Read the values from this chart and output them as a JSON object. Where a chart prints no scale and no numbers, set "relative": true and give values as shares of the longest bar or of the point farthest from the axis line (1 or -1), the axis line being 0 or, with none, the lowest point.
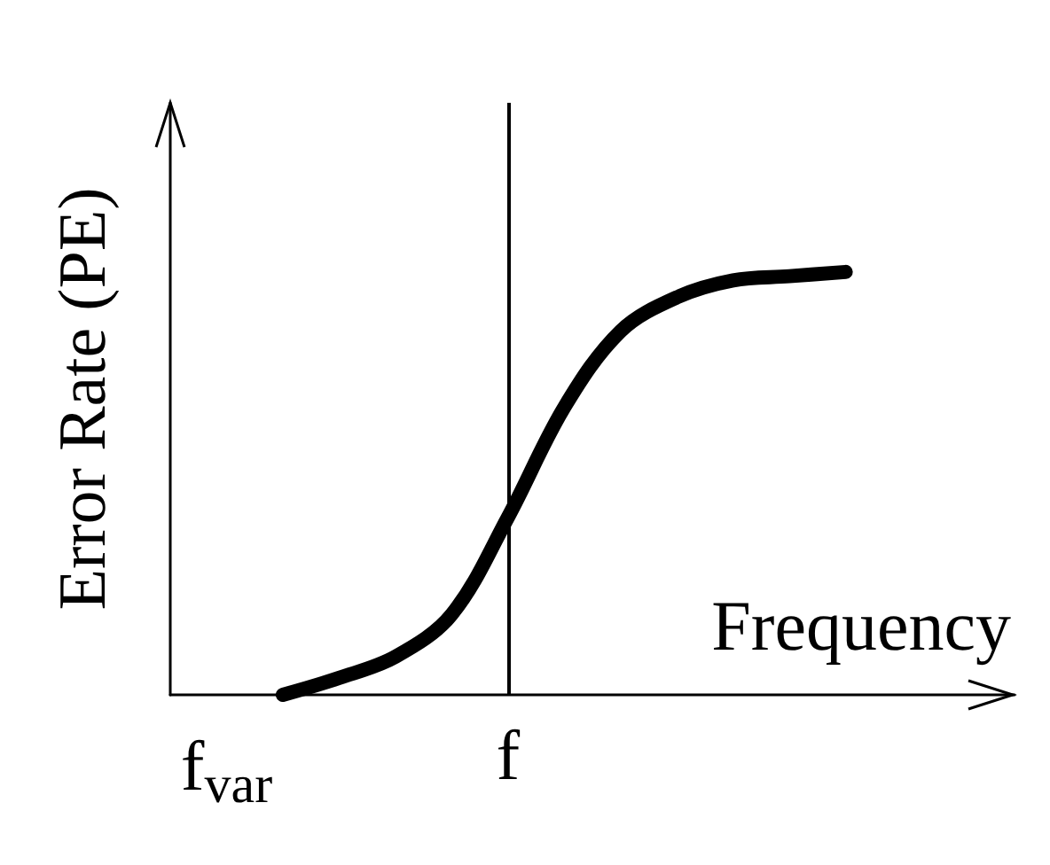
{
  "chart_data": {
    "type": "line",
    "relative": true,
    "xlabel": "Frequency",
    "ylabel": "Error Rate (PE)",
    "categories": [
      null,
      "f$_{var}$",
      null,
      null,
      null,
      null,
      "f",
      null,
      null,
      null,
      null,
      null,
      null,
      null,
      null,
      null
    ],
    "series": [
      {
        "color": "#000000",
        "values": [
          null,
          null,
          0,
          0.04,
          0.09,
          0.19,
          0.42,
          0.68,
          0.86,
          0.94,
          0.98,
          0.99,
          1,
          null,
          null,
          null
        ]
      }
    ],
    "ref_lines": [
      {
        "axis": "x",
        "value": "f",
        "color": "#000000",
        "line_style": "solid"
      }
    ],
    "line_style": "solid",
    "grid": false
  }
}
